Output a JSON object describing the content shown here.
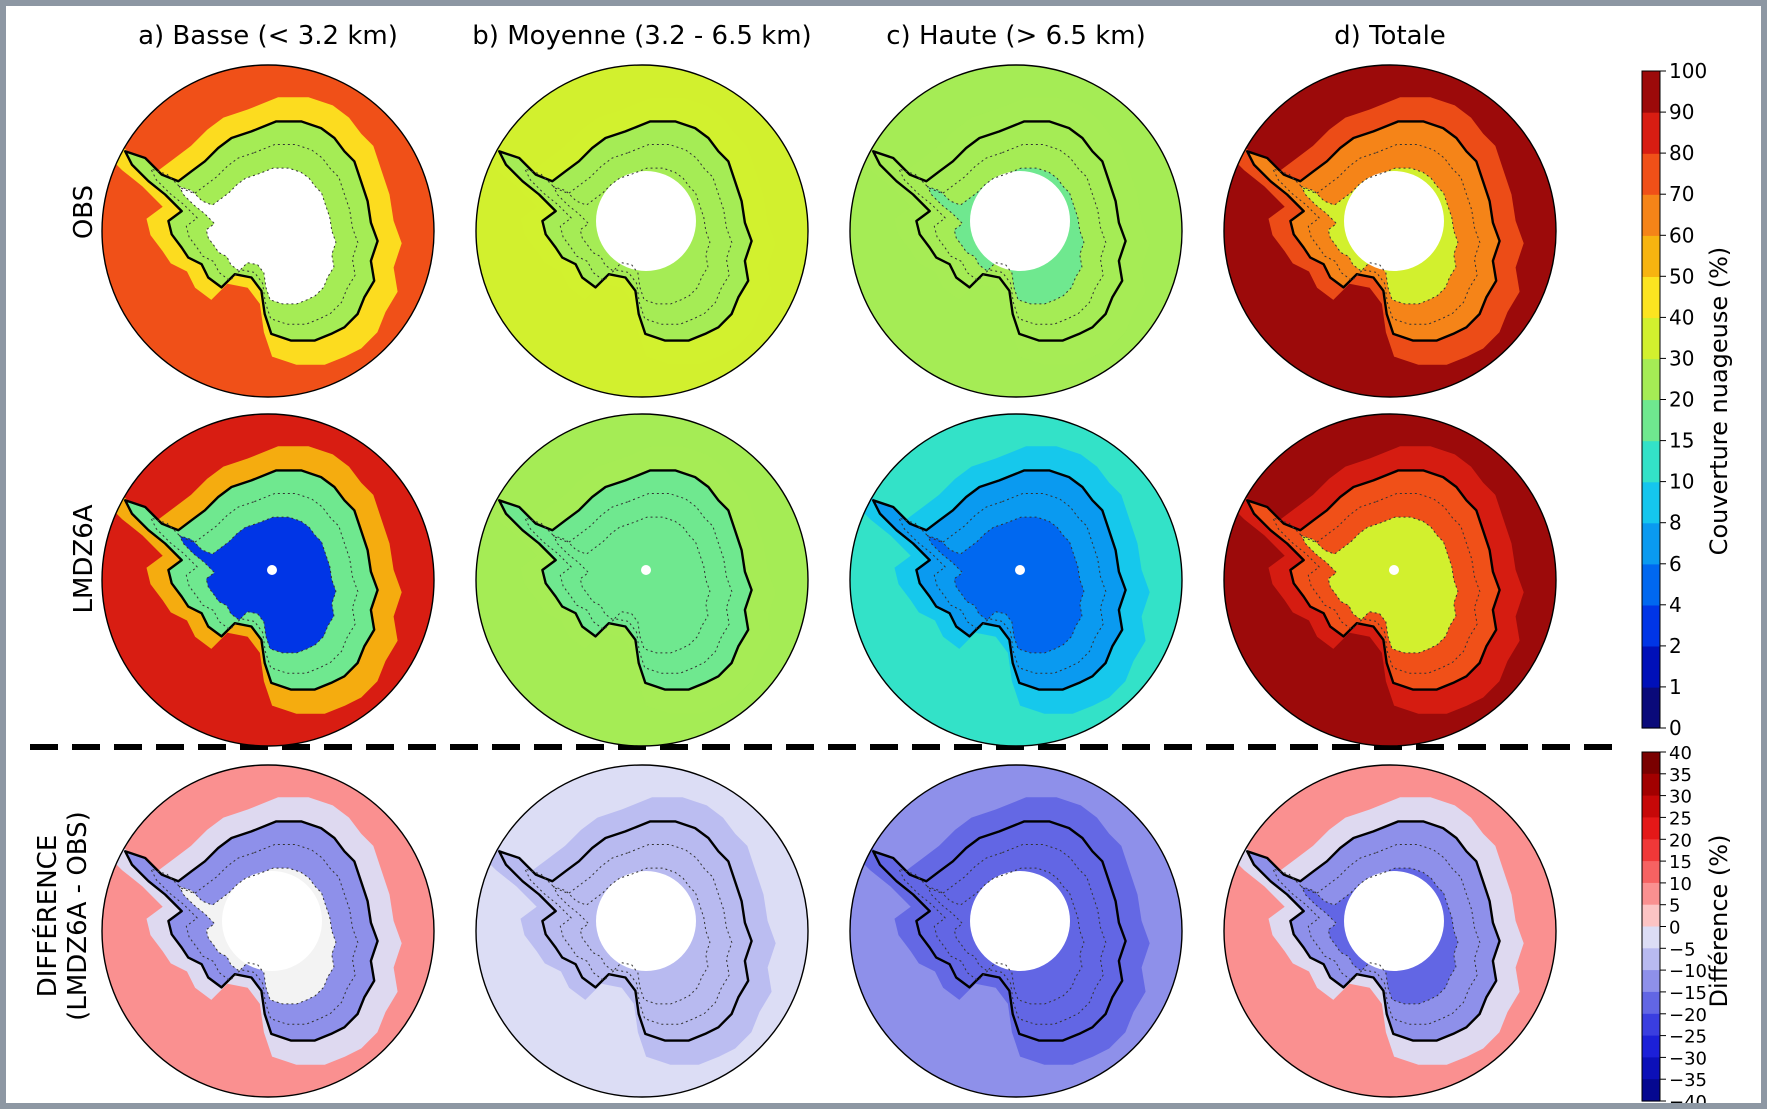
{
  "chart_data": {
    "type": "heatmap",
    "column_titles": [
      "a) Basse (< 3.2 km)",
      "b) Moyenne (3.2 - 6.5 km)",
      "c) Haute (> 6.5 km)",
      "d) Totale"
    ],
    "row_labels": [
      "OBS",
      "LMDZ6A",
      "DIFFÉRENCE",
      "(LMDZ6A - OBS)"
    ],
    "colorbars": [
      {
        "label": "Couverture nuageuse (%)",
        "ticks": [
          "0",
          "1",
          "2",
          "4",
          "6",
          "8",
          "10",
          "15",
          "20",
          "30",
          "40",
          "50",
          "60",
          "70",
          "80",
          "90",
          "100"
        ],
        "colors": [
          "#0a0a7a",
          "#0010b8",
          "#0035e6",
          "#0068f0",
          "#0a9af0",
          "#15c6ee",
          "#33e2c8",
          "#6fe88f",
          "#a5ec55",
          "#d2f02e",
          "#fce420",
          "#f7b410",
          "#f58418",
          "#f05018",
          "#d81d12",
          "#9c0a0a"
        ]
      },
      {
        "label": "Différence (%)",
        "ticks": [
          "40",
          "35",
          "30",
          "25",
          "20",
          "15",
          "10",
          "5",
          "0",
          "−5",
          "−10",
          "−15",
          "−20",
          "−25",
          "−30",
          "−35",
          "−40"
        ],
        "colors": [
          "#7a0000",
          "#a20000",
          "#c60808",
          "#e41818",
          "#f03838",
          "#f66262",
          "#fa9090",
          "#fcc4c4",
          "#dcddf5",
          "#b8baf0",
          "#8e90ea",
          "#6266e4",
          "#3a3ee0",
          "#1c20d8",
          "#0c10b8",
          "#050890"
        ]
      }
    ],
    "panels": [
      {
        "row": "OBS",
        "column": "a) Basse (< 3.2 km)",
        "ocean": "70-80",
        "coast": "15-30",
        "interior": "no data"
      },
      {
        "row": "OBS",
        "column": "b) Moyenne (3.2 - 6.5 km)",
        "ocean": "30-40",
        "coast": "20-30",
        "interior": "20-30"
      },
      {
        "row": "OBS",
        "column": "c) Haute (> 6.5 km)",
        "ocean": "20-30",
        "coast": "20-30",
        "interior": "15-20"
      },
      {
        "row": "OBS",
        "column": "d) Totale",
        "ocean": "90-100",
        "coast": "50-70",
        "interior": "30-40"
      },
      {
        "row": "LMDZ6A",
        "column": "a) Basse (< 3.2 km)",
        "ocean": "80-90",
        "coast": "10-20",
        "interior": "0-4"
      },
      {
        "row": "LMDZ6A",
        "column": "b) Moyenne (3.2 - 6.5 km)",
        "ocean": "20-30",
        "coast": "15-20",
        "interior": "15-20"
      },
      {
        "row": "LMDZ6A",
        "column": "c) Haute (> 6.5 km)",
        "ocean": "10-15",
        "coast": "6-8",
        "interior": "4-6"
      },
      {
        "row": "LMDZ6A",
        "column": "d) Totale",
        "ocean": "90-100",
        "coast": "60-80",
        "interior": "30-40"
      },
      {
        "row": "DIFFÉRENCE",
        "column": "a) Basse (< 3.2 km)",
        "ocean": "5-10",
        "coast": "-15 to -10",
        "interior": "0"
      },
      {
        "row": "DIFFÉRENCE",
        "column": "b) Moyenne (3.2 - 6.5 km)",
        "ocean": "-5-0",
        "coast": "-10 to -5",
        "interior": "-10 to -5"
      },
      {
        "row": "DIFFÉRENCE",
        "column": "c) Haute (> 6.5 km)",
        "ocean": "-15 to -10",
        "coast": "-20 to -15",
        "interior": "-20 to -15"
      },
      {
        "row": "DIFFÉRENCE",
        "column": "d) Totale",
        "ocean": "5-10",
        "coast": "-15 to -10",
        "interior": "-20 to -15"
      }
    ]
  }
}
